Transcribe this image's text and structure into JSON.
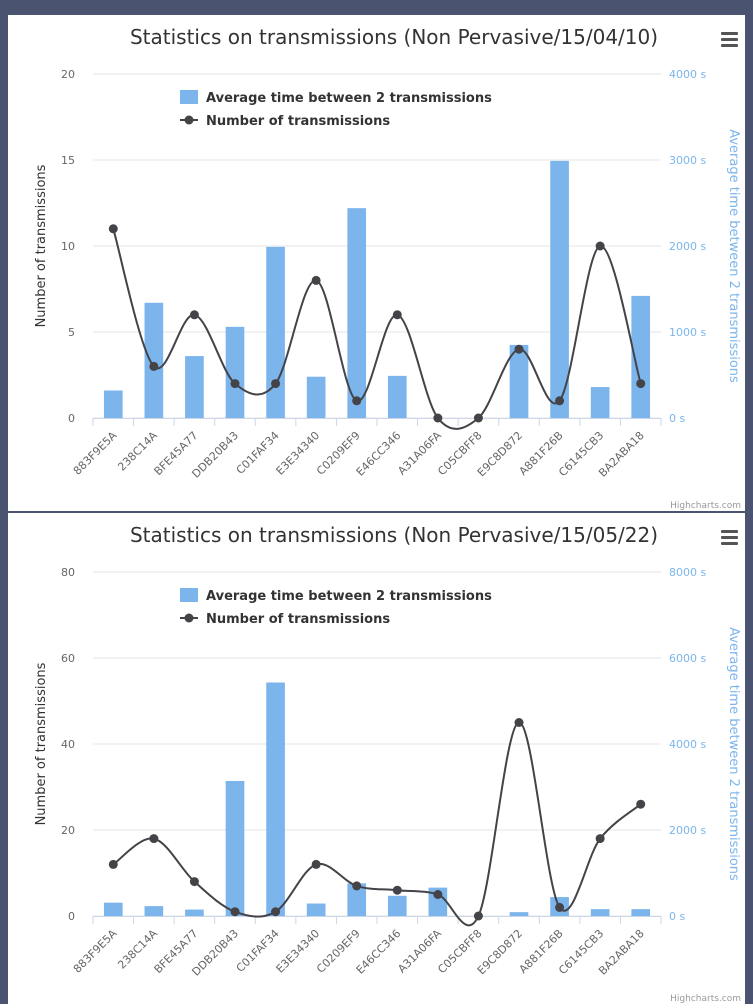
{
  "colors": {
    "bar": "#7cb5ec",
    "line": "#434348",
    "frame": "#4a5470",
    "grid": "#e6e6e6",
    "axis_text": "#666666",
    "right_axis_text": "#7cb5ec"
  },
  "icons": {
    "menu": "hamburger-menu-icon"
  },
  "chart_data": [
    {
      "type": "bar",
      "combo": "bar+line",
      "title": "Statistics on transmissions (Non Pervasive/15/04/10)",
      "credits": "Highcharts.com",
      "categories": [
        "883F9E5A",
        "238C14A",
        "BFE45A77",
        "DDB20B43",
        "C01FAF34",
        "E3E34340",
        "C0209EF9",
        "E46CC346",
        "A31A06FA",
        "C05CBFF8",
        "E9C8D872",
        "A881F26B",
        "C6145CB3",
        "BA2ABA18"
      ],
      "ylabel": "Number of transmissions",
      "ylim": [
        0,
        20
      ],
      "y_ticks": [
        "0",
        "5",
        "10",
        "15",
        "20"
      ],
      "y2label": "Average time between 2 transmissions",
      "y2lim": [
        0,
        4000
      ],
      "y2_ticks": [
        "0 s",
        "1000 s",
        "2000 s",
        "3000 s",
        "4000 s"
      ],
      "grid": true,
      "legend_position": "top-left",
      "series": [
        {
          "name": "Average time between 2 transmissions",
          "type": "column",
          "axis": "right",
          "values": [
            320,
            1340,
            720,
            1060,
            1990,
            480,
            2440,
            490,
            0,
            0,
            850,
            2990,
            360,
            1420
          ]
        },
        {
          "name": "Number of transmissions",
          "type": "spline",
          "axis": "left",
          "values": [
            11,
            3,
            6,
            2,
            2,
            8,
            1,
            6,
            0,
            0,
            4,
            1,
            10,
            2
          ]
        }
      ]
    },
    {
      "type": "bar",
      "combo": "bar+line",
      "title": "Statistics on transmissions (Non Pervasive/15/05/22)",
      "credits": "Highcharts.com",
      "categories": [
        "883F9E5A",
        "238C14A",
        "BFE45A77",
        "DDB20B43",
        "C01FAF34",
        "E3E34340",
        "C0209EF9",
        "E46CC346",
        "A31A06FA",
        "C05CBFF8",
        "E9C8D872",
        "A881F26B",
        "C6145CB3",
        "BA2ABA18"
      ],
      "ylabel": "Number of transmissions",
      "ylim": [
        0,
        80
      ],
      "y_ticks": [
        "0",
        "20",
        "40",
        "60",
        "80"
      ],
      "y2label": "Average time between 2 transmissions",
      "y2lim": [
        0,
        8000
      ],
      "y2_ticks": [
        "0 s",
        "2000 s",
        "4000 s",
        "6000 s",
        "8000 s"
      ],
      "grid": true,
      "legend_position": "top-left",
      "series": [
        {
          "name": "Average time between 2 transmissions",
          "type": "column",
          "axis": "right",
          "values": [
            310,
            230,
            150,
            3140,
            5430,
            290,
            760,
            470,
            660,
            0,
            90,
            440,
            160,
            160
          ]
        },
        {
          "name": "Number of transmissions",
          "type": "spline",
          "axis": "left",
          "values": [
            12,
            18,
            8,
            1,
            1,
            12,
            7,
            6,
            5,
            0,
            45,
            2,
            18,
            26
          ]
        }
      ]
    }
  ]
}
